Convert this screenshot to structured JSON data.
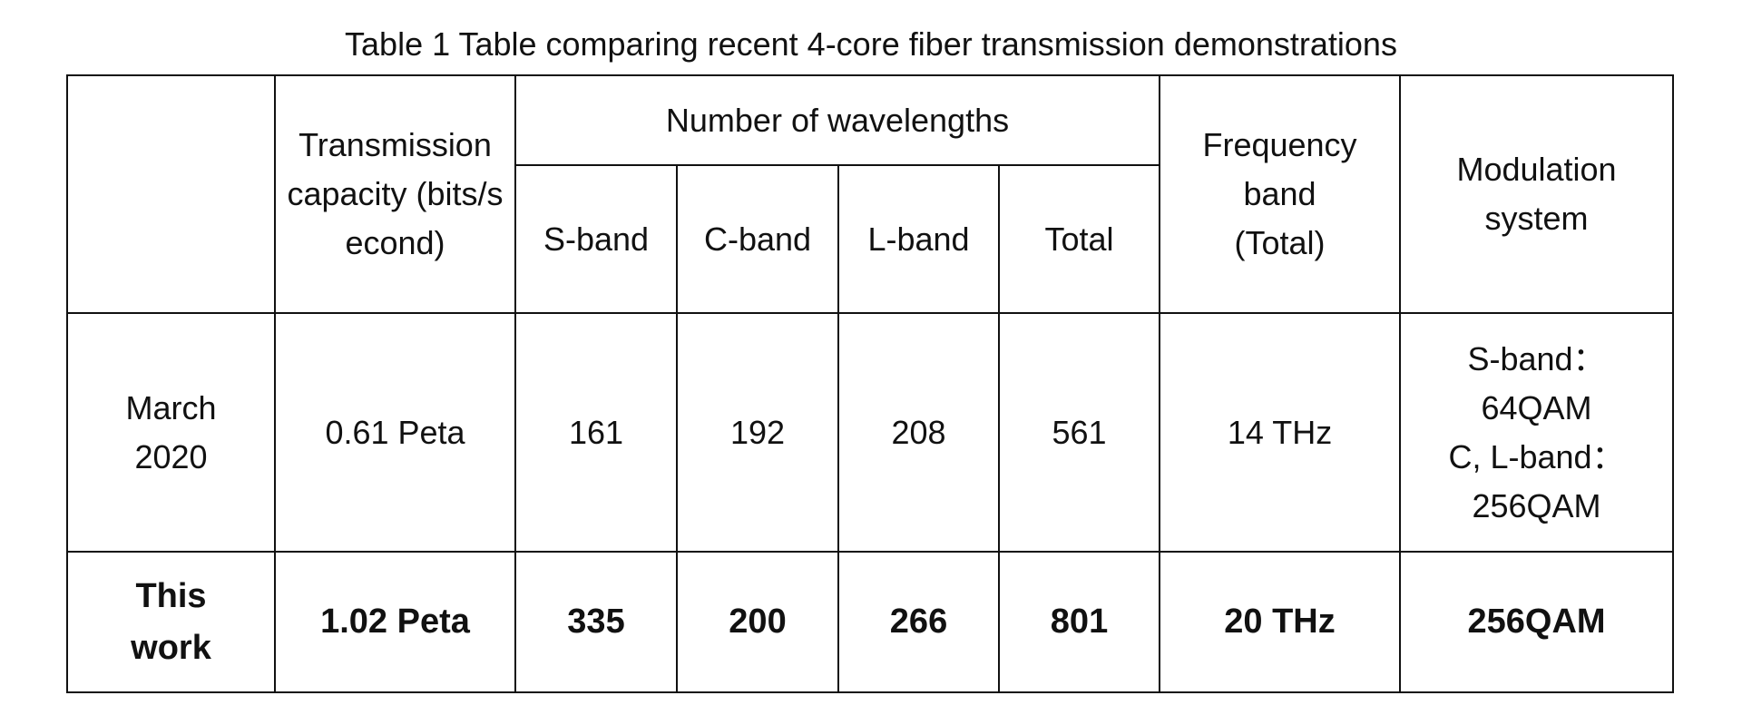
{
  "caption": "Table 1 Table comparing recent 4-core fiber transmission demonstrations",
  "table": {
    "header": {
      "blank": "",
      "capacity": "Transmission capacity (bits/second)",
      "wavelengths": "Number of wavelengths",
      "sub": [
        "S-band",
        "C-band",
        "L-band",
        "Total"
      ],
      "frequency": [
        "Frequency",
        "band",
        "(Total)"
      ],
      "modulation": "Modulation system"
    },
    "rows": [
      {
        "label": "March 2020",
        "capacity": "0.61 Peta",
        "bands": [
          "161",
          "192",
          "208",
          "561"
        ],
        "frequency": "14 THz",
        "modulation": [
          "S-band：",
          "64QAM",
          "C, L-band：",
          "256QAM"
        ]
      },
      {
        "label": "This work",
        "capacity": "1.02 Peta",
        "bands": [
          "335",
          "200",
          "266",
          "801"
        ],
        "frequency": "20 THz",
        "modulation": [
          "256QAM"
        ]
      }
    ]
  }
}
